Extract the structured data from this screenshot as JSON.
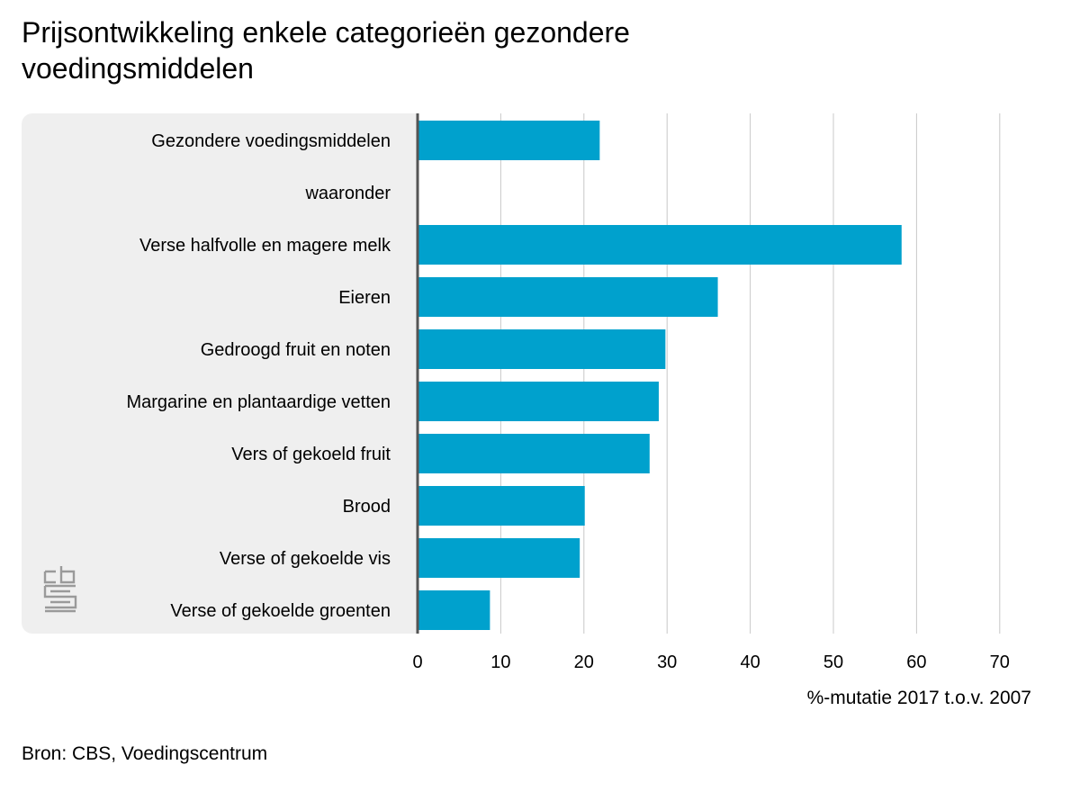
{
  "title": "Prijsontwikkeling enkele categorieën gezondere voedingsmiddelen",
  "source": "Bron: CBS, Voedingscentrum",
  "logo_icon": "cbs-logo-icon",
  "chart_data": {
    "type": "bar",
    "orientation": "horizontal",
    "title": "Prijsontwikkeling enkele categorieën gezondere voedingsmiddelen",
    "xlabel": "%-mutatie 2017 t.o.v. 2007",
    "ylabel": "",
    "xlim": [
      0,
      70
    ],
    "xticks": [
      0,
      10,
      20,
      30,
      40,
      50,
      60,
      70
    ],
    "grid": true,
    "bar_color": "#00a1cd",
    "categories": [
      "Gezondere voedingsmiddelen",
      "waaronder",
      "Verse halfvolle en magere melk",
      "Eieren",
      "Gedroogd fruit en noten",
      "Margarine en plantaardige vetten",
      "Vers of gekoeld fruit",
      "Brood",
      "Verse of gekoelde vis",
      "Verse of gekoelde groenten"
    ],
    "values": [
      21.9,
      null,
      58.2,
      36.1,
      29.8,
      29.0,
      27.9,
      20.1,
      19.5,
      8.7
    ]
  }
}
